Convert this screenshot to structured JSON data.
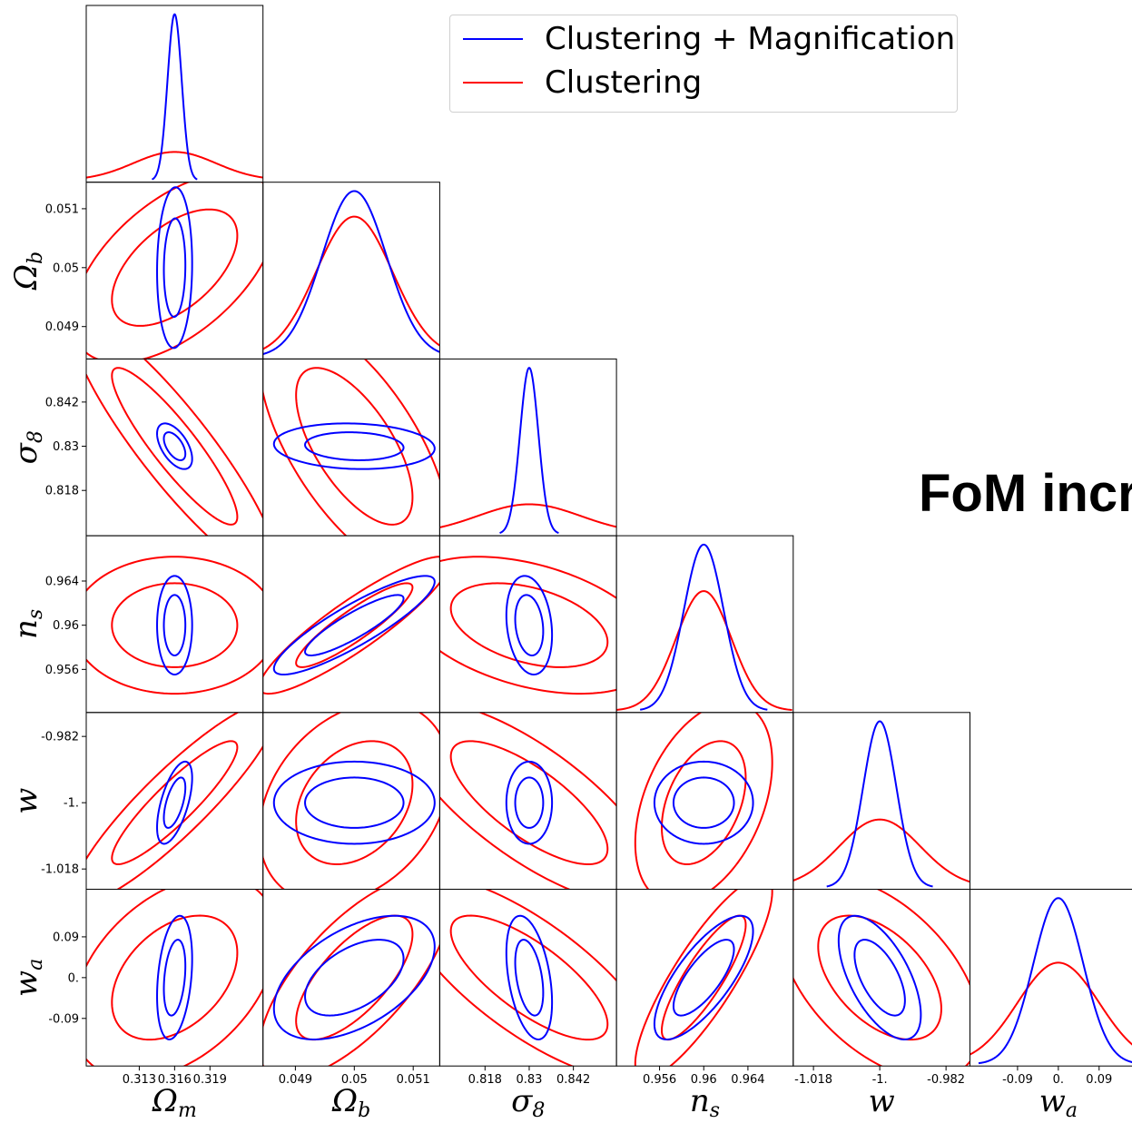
{
  "headline": "FoM incr",
  "legend": {
    "items": [
      {
        "label": "Clustering + Magnification",
        "color": "#0000ff"
      },
      {
        "label": "Clustering",
        "color": "#ff0000"
      }
    ]
  },
  "chart_data": {
    "type": "corner-plot",
    "params": [
      {
        "base": "Ω",
        "sub": "m",
        "center": 0.316,
        "ticks": [
          0.313,
          0.316,
          0.319
        ],
        "tick_labels": [
          "0.313",
          "0.316",
          "0.319"
        ],
        "range": [
          0.3085,
          0.3235
        ],
        "sigma_mag": 0.0006,
        "sigma_clu": 0.0035
      },
      {
        "base": "Ω",
        "sub": "b",
        "center": 0.05,
        "ticks": [
          0.049,
          0.05,
          0.051
        ],
        "tick_labels": [
          "0.049",
          "0.05",
          "0.051"
        ],
        "range": [
          0.04845,
          0.05145
        ],
        "sigma_mag": 0.00055,
        "sigma_clu": 0.00065
      },
      {
        "base": "σ",
        "sub": "8",
        "center": 0.83,
        "ticks": [
          0.818,
          0.83,
          0.842
        ],
        "tick_labels": [
          "0.818",
          "0.83",
          "0.842"
        ],
        "range": [
          0.8057,
          0.8537
        ],
        "sigma_mag": 0.0025,
        "sigma_clu": 0.014
      },
      {
        "base": "n",
        "sub": "s",
        "center": 0.96,
        "ticks": [
          0.956,
          0.96,
          0.964
        ],
        "tick_labels": [
          "0.956",
          "0.96",
          "0.964"
        ],
        "range": [
          0.9521,
          0.9681
        ],
        "sigma_mag": 0.0018,
        "sigma_clu": 0.0025
      },
      {
        "base": "w",
        "sub": "",
        "center": -1.0,
        "ticks": [
          -1.018,
          -1.0,
          -0.982
        ],
        "tick_labels": [
          "-1.018",
          "-1.",
          "-0.982"
        ],
        "range": [
          -1.0235,
          -0.9755
        ],
        "sigma_mag": 0.0045,
        "sigma_clu": 0.011
      },
      {
        "base": "w",
        "sub": "a",
        "center": 0.0,
        "ticks": [
          -0.09,
          0.0,
          0.09
        ],
        "tick_labels": [
          "-0.09",
          "0.",
          "0.09"
        ],
        "range": [
          -0.195,
          0.195
        ],
        "sigma_mag": 0.055,
        "sigma_clu": 0.09
      }
    ],
    "correlations": {
      "magnification": [
        [
          1.0,
          0.05,
          -0.55,
          0.0,
          0.6,
          0.3
        ],
        [
          0.05,
          1.0,
          -0.1,
          0.88,
          0.0,
          0.5
        ],
        [
          -0.55,
          -0.1,
          1.0,
          -0.2,
          0.0,
          -0.4
        ],
        [
          0.0,
          0.88,
          -0.2,
          1.0,
          0.0,
          0.75
        ],
        [
          0.6,
          0.0,
          0.0,
          0.0,
          1.0,
          -0.6
        ],
        [
          0.3,
          0.5,
          -0.4,
          0.75,
          -0.6,
          1.0
        ]
      ],
      "clustering": [
        [
          1.0,
          0.55,
          -0.9,
          0.0,
          0.9,
          0.4
        ],
        [
          0.55,
          1.0,
          -0.65,
          0.9,
          0.3,
          0.7
        ],
        [
          -0.9,
          -0.65,
          1.0,
          -0.4,
          -0.75,
          -0.75
        ],
        [
          0.0,
          0.9,
          -0.4,
          1.0,
          0.4,
          0.85
        ],
        [
          0.9,
          0.3,
          -0.75,
          0.4,
          1.0,
          -0.5
        ],
        [
          0.4,
          0.7,
          -0.75,
          0.85,
          -0.5,
          1.0
        ]
      ]
    },
    "contour_levels_sigma": [
      1.52,
      2.48
    ],
    "series": [
      {
        "name": "Clustering + Magnification",
        "color": "#0000ff"
      },
      {
        "name": "Clustering",
        "color": "#ff0000"
      }
    ]
  }
}
